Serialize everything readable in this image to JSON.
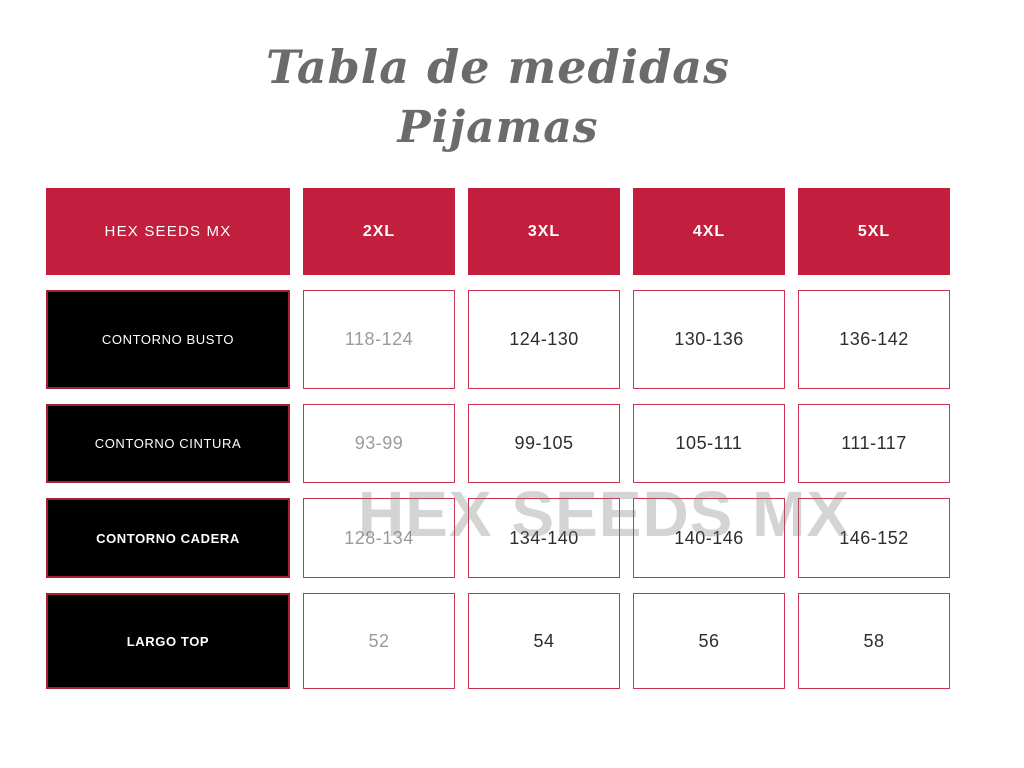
{
  "title": {
    "line1": "Tabla de medidas",
    "line2": "Pijamas"
  },
  "watermark": "HEX SEEDS MX",
  "colors": {
    "header_red": "#c11f3d",
    "label_border_red": "#a81e35",
    "cell_border_red": "#cb3350",
    "label_bg_black": "#000000",
    "muted_gray": "#9b9b9b",
    "value_dark": "#2d2d2d",
    "title_gray": "#6b6b6b"
  },
  "table": {
    "corner_label": "HEX SEEDS MX",
    "columns": [
      "2XL",
      "3XL",
      "4XL",
      "5XL"
    ],
    "rows": [
      {
        "label": "CONTORNO BUSTO",
        "values": [
          "118-124",
          "124-130",
          "130-136",
          "136-142"
        ]
      },
      {
        "label": "CONTORNO CINTURA",
        "values": [
          "93-99",
          "99-105",
          "105-111",
          "111-117"
        ]
      },
      {
        "label": "CONTORNO CADERA",
        "values": [
          "128-134",
          "134-140",
          "140-146",
          "146-152"
        ]
      },
      {
        "label": "LARGO TOP",
        "values": [
          "52",
          "54",
          "56",
          "58"
        ]
      }
    ]
  }
}
